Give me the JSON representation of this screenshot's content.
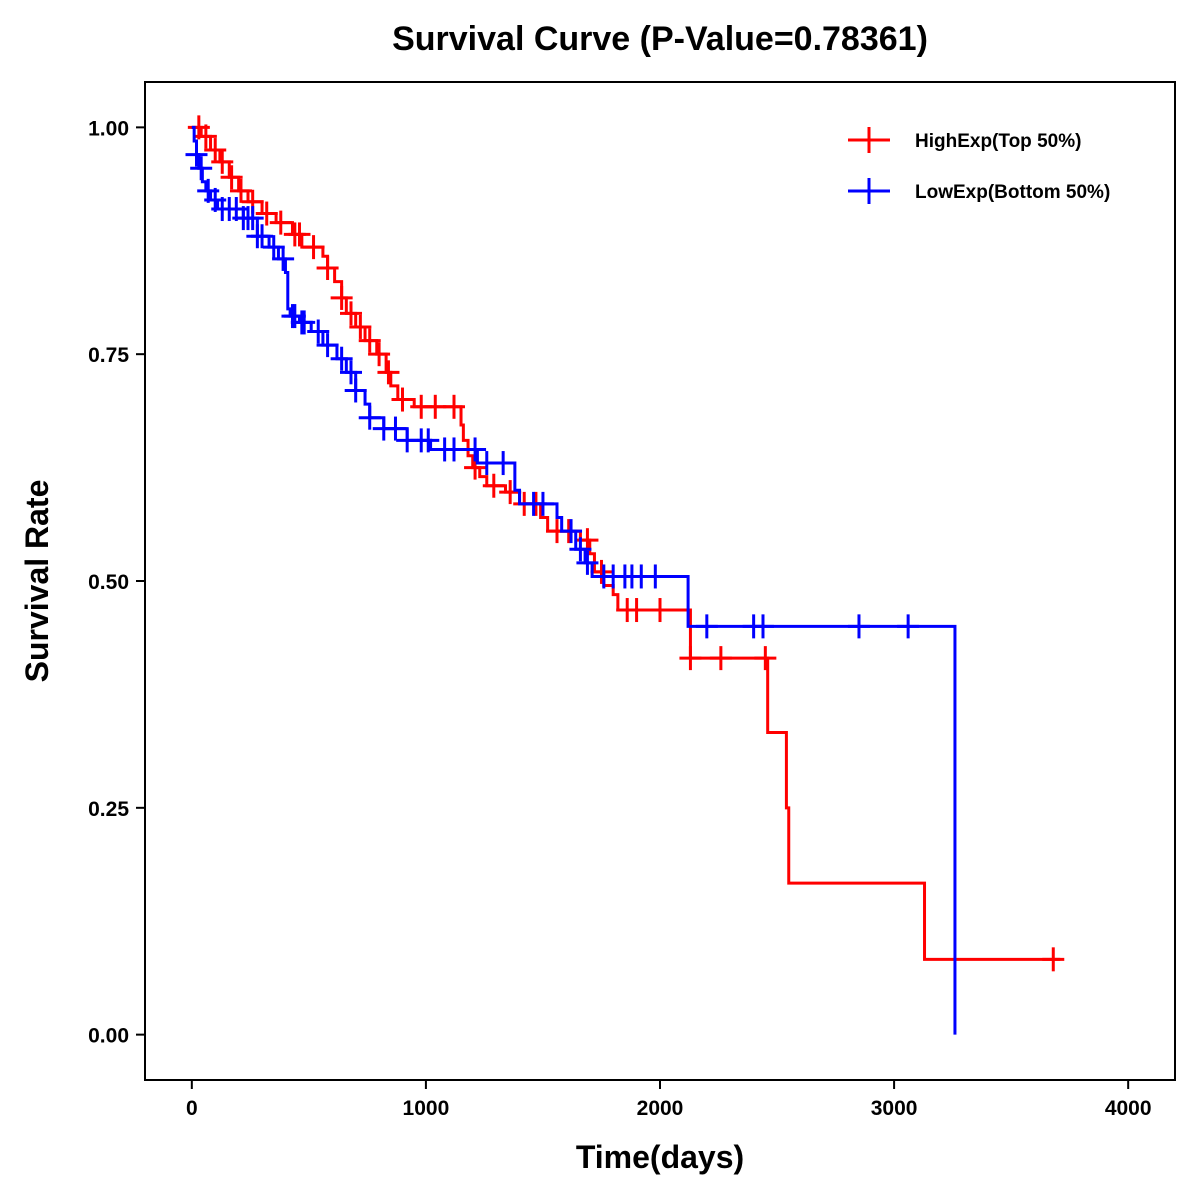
{
  "chart_data": {
    "type": "line",
    "subtype": "kaplan-meier",
    "title": "Survival Curve (P-Value=0.78361)",
    "xlabel": "Time(days)",
    "ylabel": "Survival Rate",
    "xlim": [
      -200,
      4200
    ],
    "ylim": [
      -0.05,
      1.05
    ],
    "xticks": [
      0,
      1000,
      2000,
      3000,
      4000
    ],
    "xtick_labels": [
      "0",
      "1000",
      "2000",
      "3000",
      "4000"
    ],
    "yticks": [
      0,
      0.25,
      0.5,
      0.75,
      1.0
    ],
    "ytick_labels": [
      "0.00",
      "0.25",
      "0.50",
      "0.75",
      "1.00"
    ],
    "grid": false,
    "legend_position": "top-right",
    "series": [
      {
        "name": "HighExp(Top 50%)",
        "color": "#ff0000",
        "steps": [
          [
            0,
            1.0
          ],
          [
            40,
            0.99
          ],
          [
            80,
            0.975
          ],
          [
            120,
            0.962
          ],
          [
            160,
            0.945
          ],
          [
            200,
            0.93
          ],
          [
            240,
            0.918
          ],
          [
            300,
            0.905
          ],
          [
            360,
            0.895
          ],
          [
            430,
            0.882
          ],
          [
            470,
            0.868
          ],
          [
            560,
            0.858
          ],
          [
            580,
            0.845
          ],
          [
            610,
            0.83
          ],
          [
            640,
            0.812
          ],
          [
            660,
            0.795
          ],
          [
            700,
            0.78
          ],
          [
            740,
            0.765
          ],
          [
            790,
            0.75
          ],
          [
            830,
            0.73
          ],
          [
            850,
            0.715
          ],
          [
            880,
            0.7
          ],
          [
            950,
            0.692
          ],
          [
            1150,
            0.672
          ],
          [
            1160,
            0.655
          ],
          [
            1180,
            0.638
          ],
          [
            1200,
            0.625
          ],
          [
            1230,
            0.615
          ],
          [
            1260,
            0.605
          ],
          [
            1340,
            0.598
          ],
          [
            1400,
            0.585
          ],
          [
            1490,
            0.57
          ],
          [
            1520,
            0.555
          ],
          [
            1660,
            0.545
          ],
          [
            1700,
            0.53
          ],
          [
            1720,
            0.51
          ],
          [
            1760,
            0.495
          ],
          [
            1800,
            0.485
          ],
          [
            1820,
            0.468
          ],
          [
            2130,
            0.415
          ],
          [
            2460,
            0.333
          ],
          [
            2540,
            0.25
          ],
          [
            2550,
            0.167
          ],
          [
            3130,
            0.083
          ],
          [
            3710,
            0.083
          ]
        ],
        "censor_x": [
          30,
          60,
          100,
          130,
          170,
          210,
          260,
          320,
          380,
          440,
          460,
          520,
          580,
          640,
          680,
          720,
          760,
          800,
          840,
          900,
          980,
          1040,
          1120,
          1210,
          1290,
          1360,
          1420,
          1470,
          1560,
          1610,
          1690,
          1750,
          1860,
          1900,
          2000,
          2130,
          2260,
          2450,
          3680
        ]
      },
      {
        "name": "LowExp(Bottom 50%)",
        "color": "#0000ff",
        "steps": [
          [
            0,
            1.0
          ],
          [
            10,
            0.985
          ],
          [
            20,
            0.97
          ],
          [
            30,
            0.955
          ],
          [
            45,
            0.94
          ],
          [
            60,
            0.93
          ],
          [
            80,
            0.92
          ],
          [
            110,
            0.91
          ],
          [
            220,
            0.9
          ],
          [
            280,
            0.88
          ],
          [
            330,
            0.868
          ],
          [
            370,
            0.855
          ],
          [
            400,
            0.84
          ],
          [
            410,
            0.8
          ],
          [
            420,
            0.792
          ],
          [
            460,
            0.785
          ],
          [
            510,
            0.775
          ],
          [
            560,
            0.76
          ],
          [
            620,
            0.745
          ],
          [
            660,
            0.73
          ],
          [
            700,
            0.71
          ],
          [
            740,
            0.695
          ],
          [
            760,
            0.68
          ],
          [
            820,
            0.668
          ],
          [
            920,
            0.655
          ],
          [
            1020,
            0.645
          ],
          [
            1220,
            0.63
          ],
          [
            1380,
            0.6
          ],
          [
            1400,
            0.585
          ],
          [
            1560,
            0.57
          ],
          [
            1580,
            0.555
          ],
          [
            1640,
            0.535
          ],
          [
            1680,
            0.52
          ],
          [
            1710,
            0.505
          ],
          [
            2120,
            0.45
          ],
          [
            3260,
            0.0
          ]
        ],
        "censor_x": [
          20,
          40,
          70,
          100,
          130,
          160,
          190,
          220,
          240,
          260,
          280,
          300,
          350,
          390,
          430,
          440,
          470,
          480,
          540,
          580,
          640,
          680,
          700,
          760,
          820,
          870,
          920,
          980,
          1010,
          1080,
          1120,
          1210,
          1260,
          1330,
          1460,
          1500,
          1620,
          1660,
          1690,
          1760,
          1800,
          1850,
          1880,
          1920,
          1980,
          2200,
          2400,
          2440,
          2850,
          3060
        ]
      }
    ]
  }
}
